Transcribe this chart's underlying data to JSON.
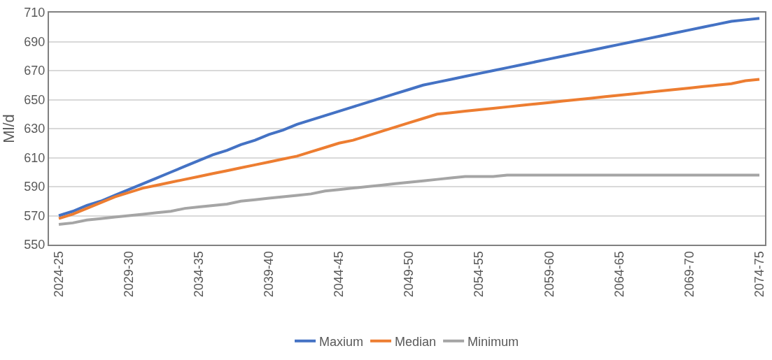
{
  "chart_data": {
    "type": "line",
    "ylabel": "Ml/d",
    "categories": [
      "2024-25",
      null,
      null,
      null,
      null,
      "2029-30",
      null,
      null,
      null,
      null,
      "2034-35",
      null,
      null,
      null,
      null,
      "2039-40",
      null,
      null,
      null,
      null,
      "2044-45",
      null,
      null,
      null,
      null,
      "2049-50",
      null,
      null,
      null,
      null,
      "2054-55",
      null,
      null,
      null,
      null,
      "2059-60",
      null,
      null,
      null,
      null,
      "2064-65",
      null,
      null,
      null,
      null,
      "2069-70",
      null,
      null,
      null,
      null,
      "2074-75"
    ],
    "series": [
      {
        "name": "Maxium",
        "color": "#4472c4",
        "values": [
          570,
          573,
          577,
          580,
          584,
          588,
          592,
          596,
          600,
          604,
          608,
          612,
          615,
          619,
          622,
          626,
          629,
          633,
          636,
          639,
          642,
          645,
          648,
          651,
          654,
          657,
          660,
          662,
          664,
          666,
          668,
          670,
          672,
          674,
          676,
          678,
          680,
          682,
          684,
          686,
          688,
          690,
          692,
          694,
          696,
          698,
          700,
          702,
          704,
          705,
          706
        ]
      },
      {
        "name": "Median",
        "color": "#ed7d31",
        "values": [
          568,
          571,
          575,
          579,
          583,
          586,
          589,
          591,
          593,
          595,
          597,
          599,
          601,
          603,
          605,
          607,
          609,
          611,
          614,
          617,
          620,
          622,
          625,
          628,
          631,
          634,
          637,
          640,
          641,
          642,
          643,
          644,
          645,
          646,
          647,
          648,
          649,
          650,
          651,
          652,
          653,
          654,
          655,
          656,
          657,
          658,
          659,
          660,
          661,
          663,
          664
        ]
      },
      {
        "name": "Minimum",
        "color": "#a5a5a5",
        "values": [
          564,
          565,
          567,
          568,
          569,
          570,
          571,
          572,
          573,
          575,
          576,
          577,
          578,
          580,
          581,
          582,
          583,
          584,
          585,
          587,
          588,
          589,
          590,
          591,
          592,
          593,
          594,
          595,
          596,
          597,
          597,
          597,
          598,
          598,
          598,
          598,
          598,
          598,
          598,
          598,
          598,
          598,
          598,
          598,
          598,
          598,
          598,
          598,
          598,
          598,
          598
        ]
      }
    ],
    "ylim": [
      550,
      710
    ],
    "yticks": [
      550,
      570,
      590,
      610,
      630,
      650,
      670,
      690,
      710
    ],
    "grid": "y",
    "legend": "bottom",
    "marker": "none",
    "line_style": "solid"
  }
}
